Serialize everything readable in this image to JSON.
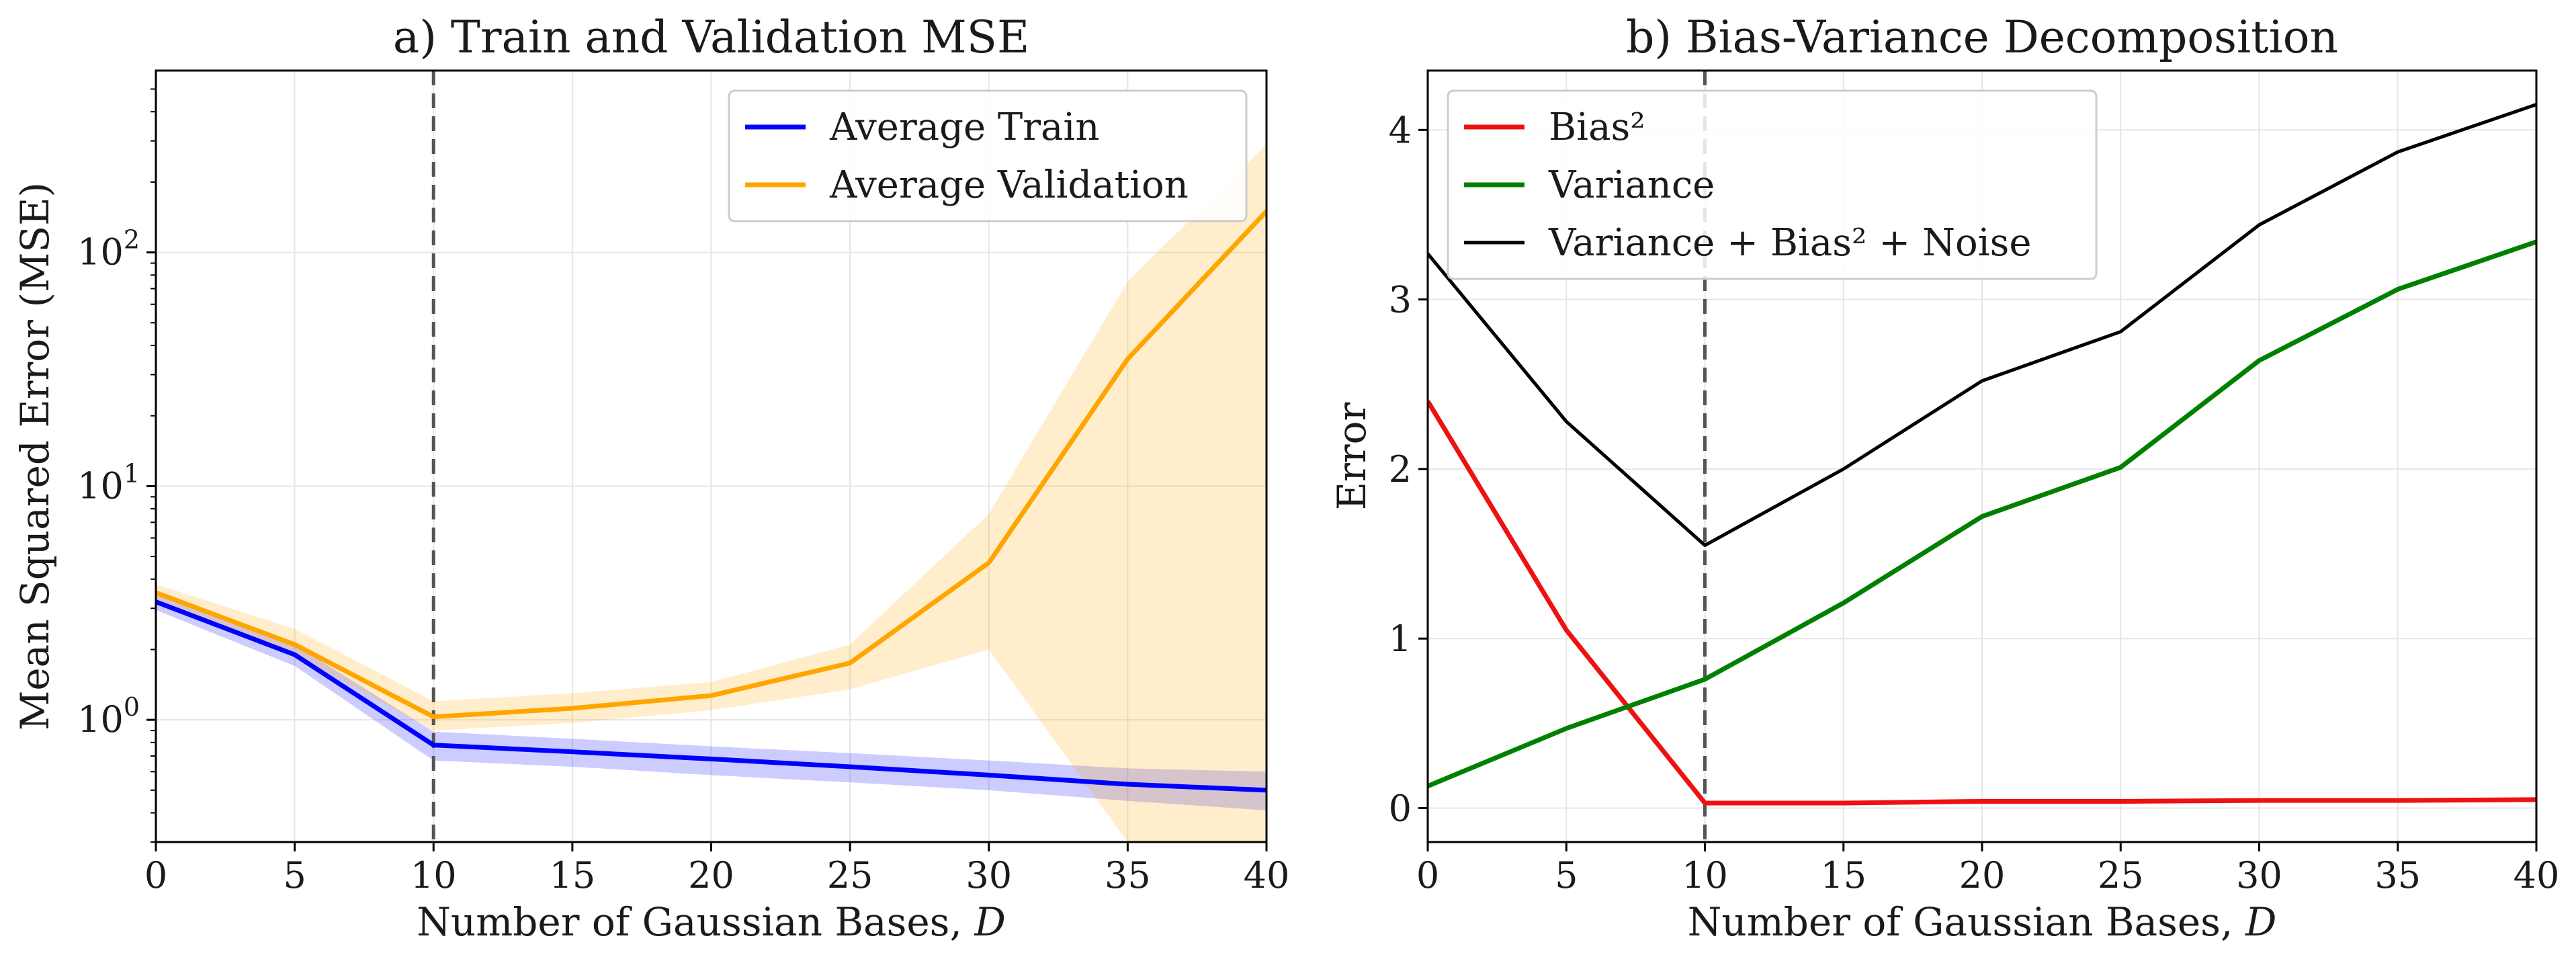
{
  "chart_data": [
    {
      "type": "line",
      "title": "a) Train and Validation MSE",
      "xlabel": "Number of Gaussian Bases, ",
      "xlabel_var": "D",
      "ylabel": "Mean Squared Error (MSE)",
      "yscale": "log",
      "xlim": [
        0,
        40
      ],
      "ylim": [
        0.3,
        600
      ],
      "grid": true,
      "legend_position": "upper right",
      "x_ticks": [
        0,
        5,
        10,
        15,
        20,
        25,
        30,
        35,
        40
      ],
      "x_tick_labels": [
        "0",
        "5",
        "10",
        "15",
        "20",
        "25",
        "30",
        "35",
        "40"
      ],
      "y_ticks": [
        1,
        10,
        100
      ],
      "y_tick_labels": [
        {
          "base": "10",
          "exp": "0"
        },
        {
          "base": "10",
          "exp": "1"
        },
        {
          "base": "10",
          "exp": "2"
        }
      ],
      "vline_x": 10,
      "series": [
        {
          "name": "Average Train",
          "color": "#0000ff",
          "band_color": "#0000ff",
          "x": [
            0,
            5,
            10,
            15,
            20,
            25,
            30,
            35,
            40
          ],
          "values": [
            3.2,
            1.9,
            0.78,
            0.73,
            0.68,
            0.63,
            0.58,
            0.53,
            0.5
          ],
          "lower": [
            2.95,
            1.7,
            0.67,
            0.63,
            0.58,
            0.54,
            0.5,
            0.45,
            0.41
          ],
          "upper": [
            3.45,
            2.1,
            0.89,
            0.83,
            0.77,
            0.72,
            0.67,
            0.62,
            0.6
          ]
        },
        {
          "name": "Average Validation",
          "color": "#ffa500",
          "band_color": "#ffa500",
          "x": [
            0,
            5,
            10,
            15,
            20,
            25,
            30,
            35,
            40
          ],
          "values": [
            3.5,
            2.1,
            1.03,
            1.12,
            1.27,
            1.75,
            4.7,
            35,
            150
          ],
          "lower": [
            3.3,
            1.9,
            0.9,
            0.97,
            1.1,
            1.35,
            2.0,
            0.3,
            0.3
          ],
          "upper": [
            3.8,
            2.45,
            1.2,
            1.3,
            1.45,
            2.1,
            7.6,
            75,
            290
          ]
        }
      ]
    },
    {
      "type": "line",
      "title": "b) Bias-Variance Decomposition",
      "xlabel": "Number of Gaussian Bases, ",
      "xlabel_var": "D",
      "ylabel": "Error",
      "yscale": "linear",
      "xlim": [
        0,
        40
      ],
      "ylim": [
        -0.2,
        4.35
      ],
      "grid": true,
      "legend_position": "upper left",
      "x_ticks": [
        0,
        5,
        10,
        15,
        20,
        25,
        30,
        35,
        40
      ],
      "x_tick_labels": [
        "0",
        "5",
        "10",
        "15",
        "20",
        "25",
        "30",
        "35",
        "40"
      ],
      "y_ticks": [
        0,
        1,
        2,
        3,
        4
      ],
      "y_tick_labels": [
        "0",
        "1",
        "2",
        "3",
        "4"
      ],
      "vline_x": 10,
      "series": [
        {
          "name": "Bias²",
          "color": "#ee1111",
          "x": [
            0,
            5,
            10,
            15,
            20,
            25,
            30,
            35,
            40
          ],
          "values": [
            2.4,
            1.05,
            0.03,
            0.03,
            0.04,
            0.04,
            0.045,
            0.045,
            0.05
          ]
        },
        {
          "name": "Variance",
          "color": "#008000",
          "x": [
            0,
            5,
            10,
            15,
            20,
            25,
            30,
            35,
            40
          ],
          "values": [
            0.13,
            0.47,
            0.76,
            1.21,
            1.72,
            2.01,
            2.64,
            3.06,
            3.34
          ]
        },
        {
          "name": "Variance + Bias² + Noise",
          "color": "#000000",
          "x": [
            0,
            5,
            10,
            15,
            20,
            25,
            30,
            35,
            40
          ],
          "values": [
            3.27,
            2.28,
            1.55,
            2.0,
            2.52,
            2.81,
            3.44,
            3.87,
            4.15
          ]
        }
      ]
    }
  ]
}
